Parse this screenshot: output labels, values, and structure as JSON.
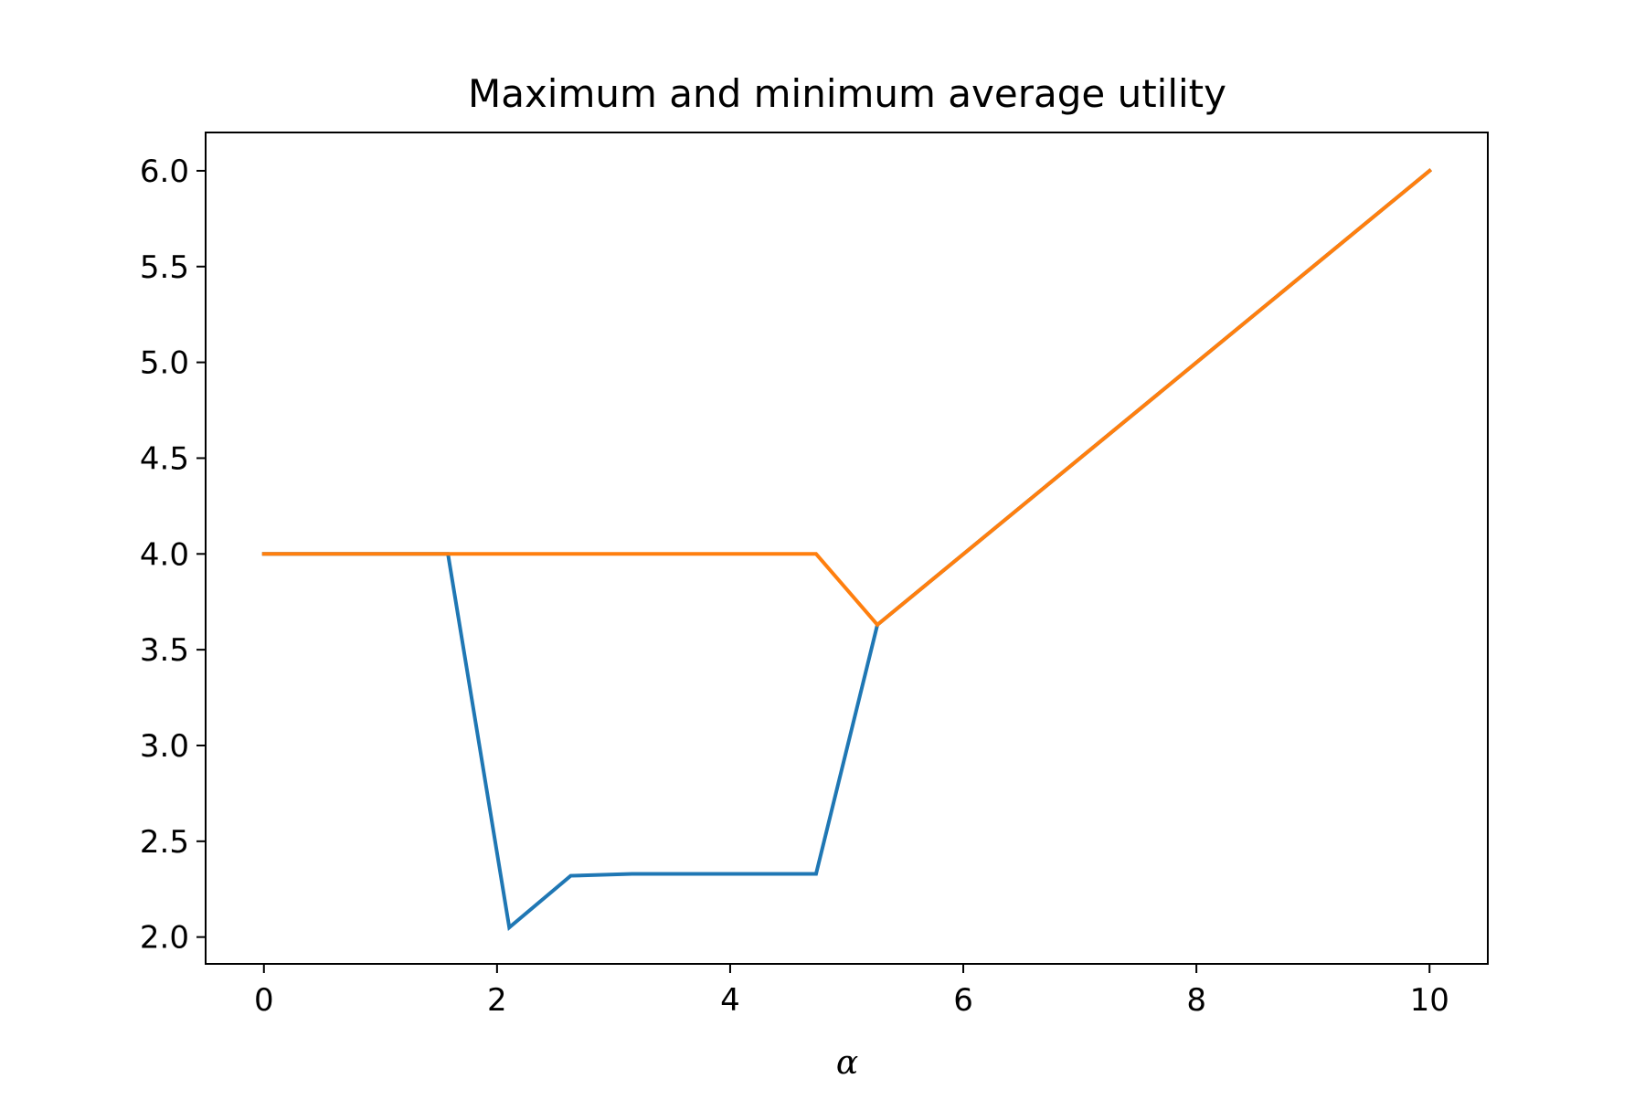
{
  "chart_data": {
    "type": "line",
    "title": "Maximum and minimum average utility",
    "xlabel": "α",
    "ylabel": "",
    "xlim": [
      -0.5,
      10.5
    ],
    "ylim": [
      1.86,
      6.2
    ],
    "xticks": [
      0,
      2,
      4,
      6,
      8,
      10
    ],
    "xtick_labels": [
      "0",
      "2",
      "4",
      "6",
      "8",
      "10"
    ],
    "yticks": [
      2.0,
      2.5,
      3.0,
      3.5,
      4.0,
      4.5,
      5.0,
      5.5,
      6.0
    ],
    "ytick_labels": [
      "2.0",
      "2.5",
      "3.0",
      "3.5",
      "4.0",
      "4.5",
      "5.0",
      "5.5",
      "6.0"
    ],
    "grid": false,
    "legend": false,
    "series": [
      {
        "color": "#1f77b4",
        "x": [
          0,
          1.579,
          2.105,
          2.632,
          3.158,
          3.684,
          4.211,
          4.737,
          5.263,
          10
        ],
        "y": [
          4.0,
          4.0,
          2.05,
          2.32,
          2.33,
          2.33,
          2.33,
          2.33,
          3.63,
          6.0
        ]
      },
      {
        "color": "#ff7f0e",
        "x": [
          0,
          1.579,
          2.105,
          2.632,
          3.158,
          3.684,
          4.211,
          4.737,
          5.263,
          10
        ],
        "y": [
          4.0,
          4.0,
          4.0,
          4.0,
          4.0,
          4.0,
          4.0,
          4.0,
          3.63,
          6.0
        ]
      }
    ]
  }
}
